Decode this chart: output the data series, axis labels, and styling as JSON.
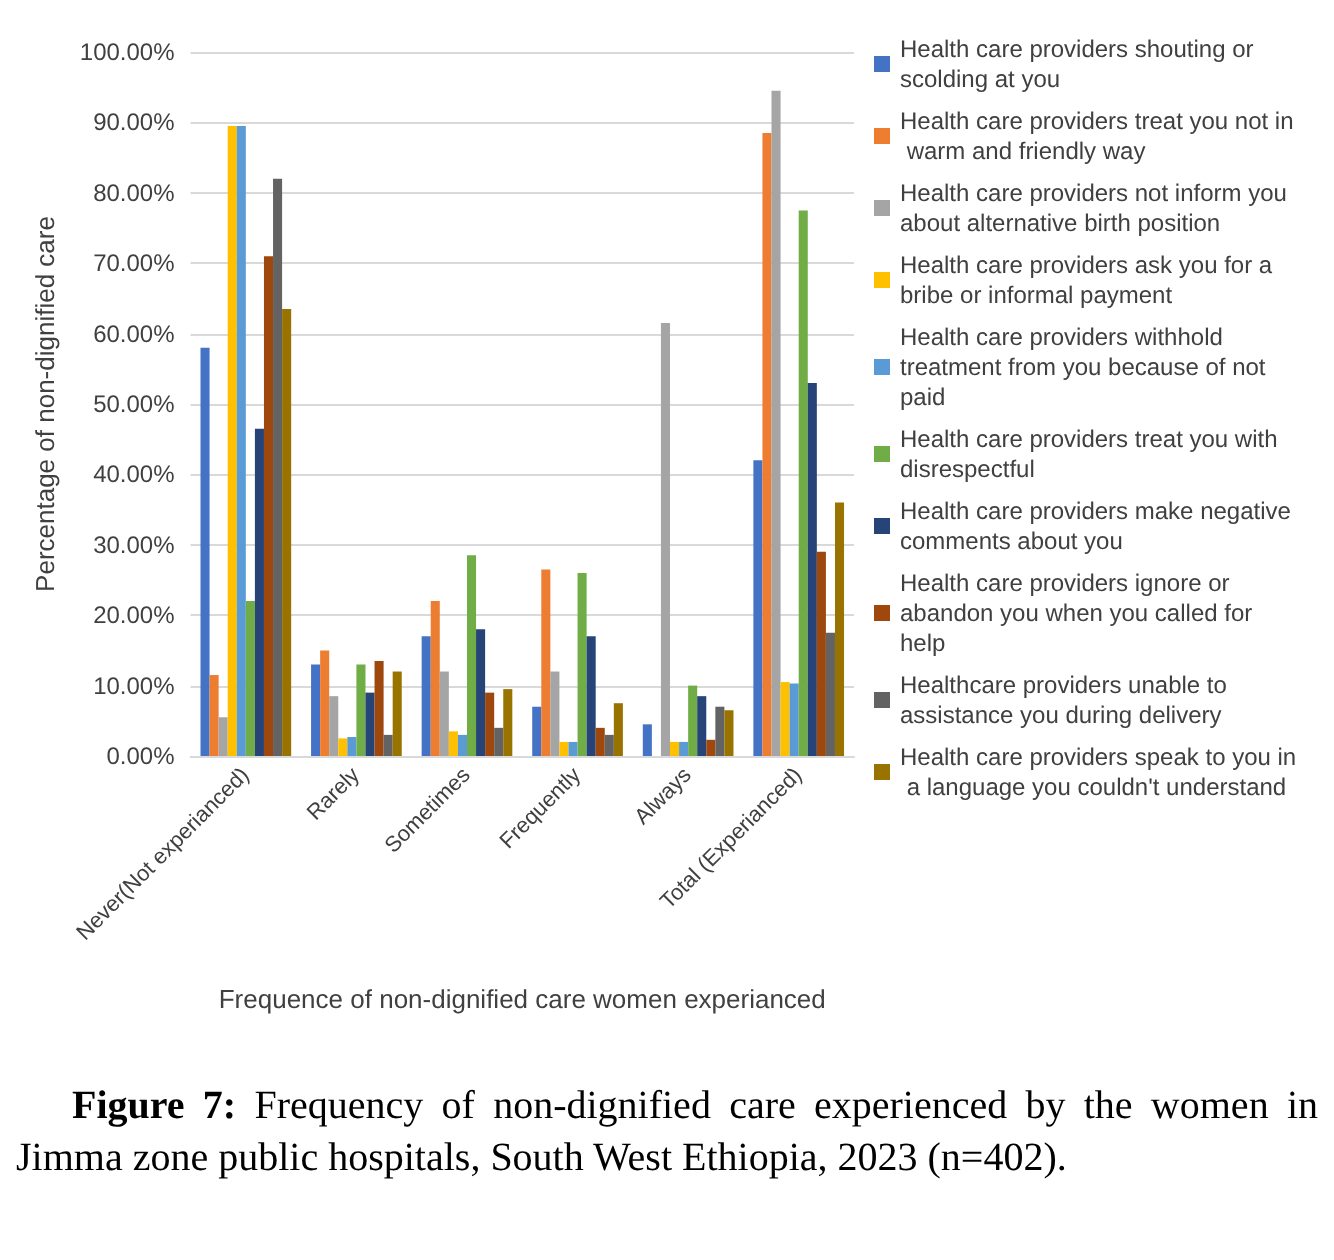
{
  "chart_data": {
    "type": "bar",
    "xlabel": "Frequence of non-dignified care women experianced",
    "ylabel": "Percentage of non-dignified care",
    "categories": [
      "Never(Not experianced)",
      "Rarely",
      "Sometimes",
      "Frequently",
      "Always",
      "Total (Experianced)"
    ],
    "series": [
      {
        "name": "Health care providers shouting or scolding at you",
        "color": "#4472c4",
        "values": [
          58,
          13,
          17,
          7,
          4.5,
          42
        ]
      },
      {
        "name": "Health care providers treat you not in warm and friendly way",
        "color": "#ed7d31",
        "values": [
          11.5,
          15,
          22,
          26.5,
          null,
          88.5
        ]
      },
      {
        "name": "Health care providers not inform you about alternative birth position",
        "color": "#a5a5a5",
        "values": [
          5.5,
          8.5,
          12,
          12,
          61.5,
          94.5
        ]
      },
      {
        "name": "Health care providers ask you for a bribe or informal payment",
        "color": "#ffc000",
        "values": [
          89.5,
          2.5,
          3.5,
          2,
          2,
          10.5
        ]
      },
      {
        "name": "Health care providers withhold treatment from you because of not paid",
        "color": "#5b9bd5",
        "values": [
          89.5,
          2.7,
          3,
          2,
          2,
          10.3
        ]
      },
      {
        "name": "Health care providers treat you with disrespectful",
        "color": "#70ad47",
        "values": [
          22,
          13,
          28.5,
          26,
          10,
          77.5
        ]
      },
      {
        "name": "Health care providers make negative comments about you",
        "color": "#264478",
        "values": [
          46.5,
          9,
          18,
          17,
          8.5,
          53
        ]
      },
      {
        "name": "Health care providers ignore or abandon you when you called for help",
        "color": "#9e480e",
        "values": [
          71,
          13.5,
          9,
          4,
          2.3,
          29
        ]
      },
      {
        "name": "Healthcare providers unable to assistance you during delivery",
        "color": "#636363",
        "values": [
          82,
          3,
          4,
          3,
          7,
          17.5
        ]
      },
      {
        "name": "Health care providers speak to you in a language you couldn't understand",
        "color": "#997300",
        "values": [
          63.5,
          12,
          9.5,
          7.5,
          6.5,
          36
        ]
      }
    ],
    "ylim": [
      0,
      100
    ],
    "yticks": [
      {
        "value": 0,
        "label": "0.00%"
      },
      {
        "value": 10,
        "label": "10.00%"
      },
      {
        "value": 20,
        "label": "20.00%"
      },
      {
        "value": 30,
        "label": "30.00%"
      },
      {
        "value": 40,
        "label": "40.00%"
      },
      {
        "value": 50,
        "label": "50.00%"
      },
      {
        "value": 60,
        "label": "60.00%"
      },
      {
        "value": 70,
        "label": "70.00%"
      },
      {
        "value": 80,
        "label": "80.00%"
      },
      {
        "value": 90,
        "label": "90.00%"
      },
      {
        "value": 100,
        "label": "100.00%"
      }
    ],
    "grid": "y",
    "legend": "right",
    "annotations": [
      "Figure 7: Frequency of non-dignified care experienced by the women in Jimma zone public hospitals, South West Ethiopia, 2023 (n=402)."
    ]
  }
}
